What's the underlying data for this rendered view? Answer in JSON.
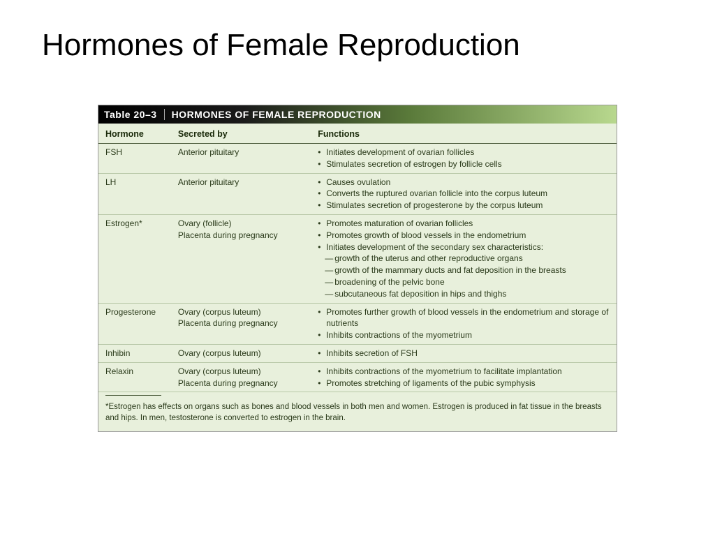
{
  "slide": {
    "title": "Hormones of Female Reproduction"
  },
  "table": {
    "label": "Table 20–3",
    "title": "HORMONES OF FEMALE REPRODUCTION",
    "headers": {
      "hormone": "Hormone",
      "secreted": "Secreted by",
      "functions": "Functions"
    },
    "rows": [
      {
        "hormone": "FSH",
        "secreted": "Anterior pituitary",
        "functions": [
          "Initiates development of ovarian follicles",
          "Stimulates secretion of estrogen by follicle cells"
        ]
      },
      {
        "hormone": "LH",
        "secreted": "Anterior pituitary",
        "functions": [
          "Causes ovulation",
          "Converts the ruptured ovarian follicle into the corpus luteum",
          "Stimulates secretion of progesterone by the corpus luteum"
        ]
      },
      {
        "hormone": "Estrogen*",
        "secreted": "Ovary (follicle)\nPlacenta during pregnancy",
        "functions": [
          "Promotes maturation of ovarian follicles",
          "Promotes growth of blood vessels in the endometrium",
          "Initiates development of the secondary sex characteristics:"
        ],
        "sub_functions": [
          "growth of the uterus and other reproductive organs",
          "growth of the mammary ducts and fat deposition in the breasts",
          "broadening of the pelvic bone",
          "subcutaneous fat deposition in hips and thighs"
        ]
      },
      {
        "hormone": "Progesterone",
        "secreted": "Ovary (corpus luteum)\nPlacenta during pregnancy",
        "functions": [
          "Promotes further growth of blood vessels in the endometrium and storage of nutrients",
          "Inhibits contractions of the myometrium"
        ]
      },
      {
        "hormone": "Inhibin",
        "secreted": "Ovary (corpus luteum)",
        "functions": [
          "Inhibits secretion of FSH"
        ]
      },
      {
        "hormone": "Relaxin",
        "secreted": "Ovary (corpus luteum)\nPlacenta during pregnancy",
        "functions": [
          "Inhibits contractions of the myometrium to facilitate implantation",
          "Promotes stretching of ligaments of the pubic symphysis"
        ]
      }
    ],
    "footnote": "*Estrogen has effects on organs such as bones and blood vessels in both men and women. Estrogen is produced in fat tissue in the breasts and hips. In men, testosterone is converted to estrogen in the brain."
  },
  "style": {
    "background_color": "#ffffff",
    "table_bg": "#e8f0dc",
    "header_gradient_start": "#000000",
    "header_gradient_end": "#b8d88e",
    "text_color": "#2a3a1a",
    "title_fontsize": 44,
    "table_fontsize": 12
  }
}
